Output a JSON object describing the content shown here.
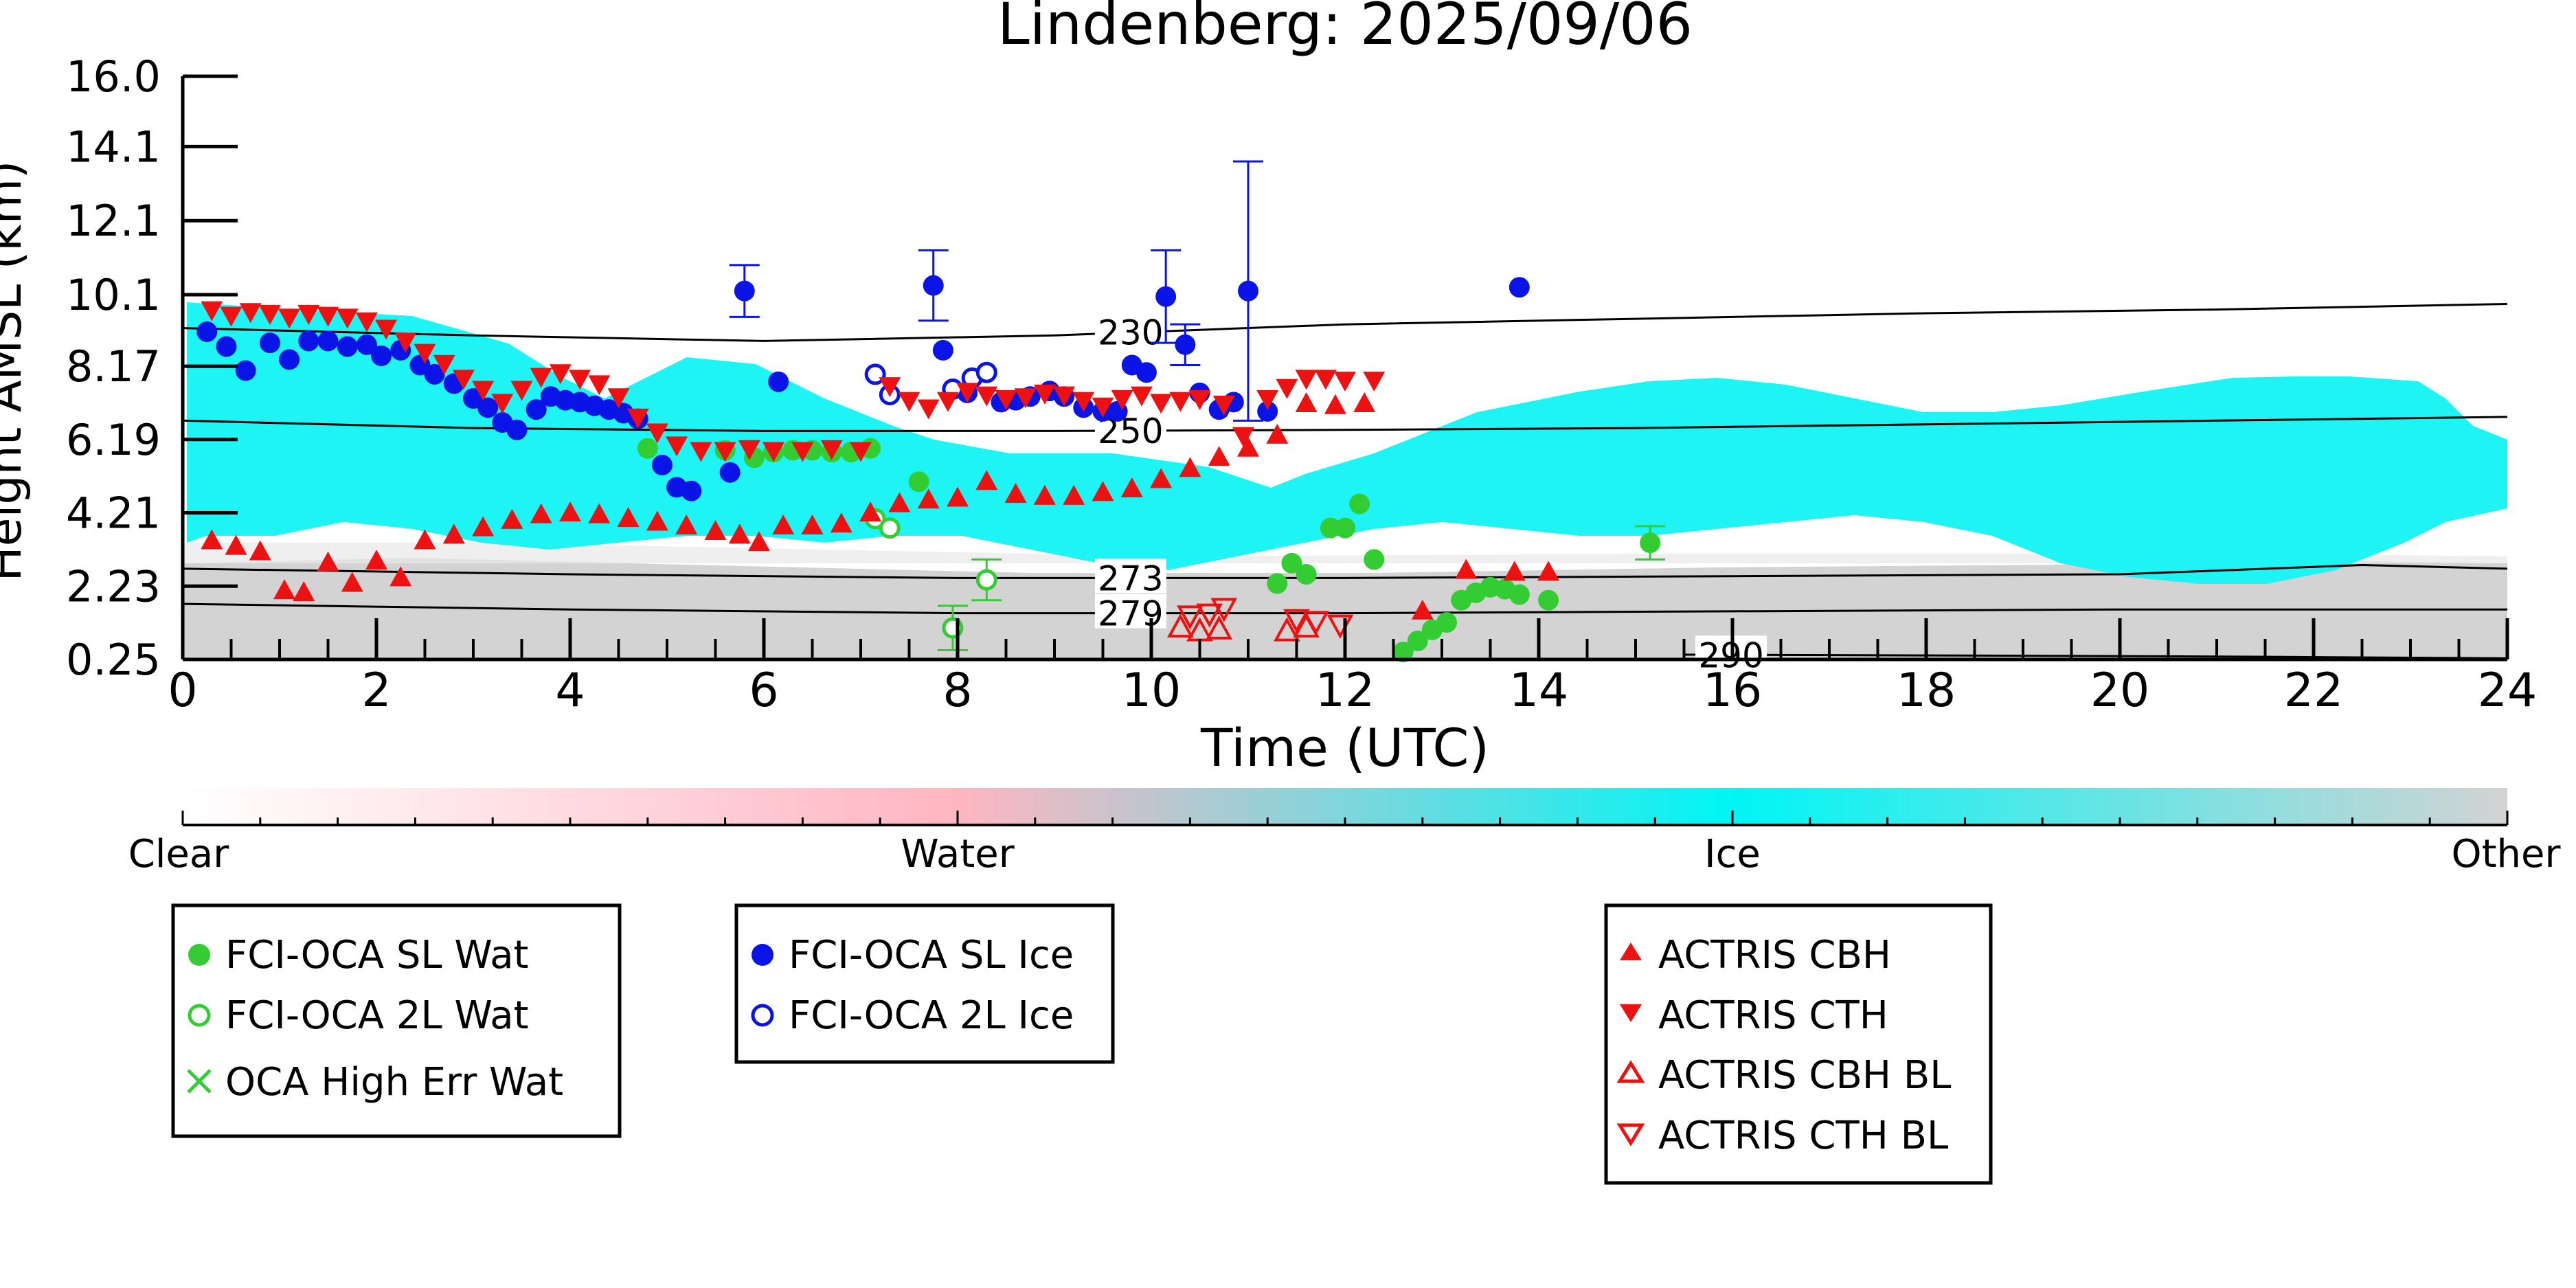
{
  "chart_data": {
    "type": "scatter",
    "title": "Lindenberg: 2025/09/06",
    "xlabel": "Time (UTC)",
    "ylabel": "Height AMSL (km)",
    "xlim": [
      0,
      24
    ],
    "ylim": [
      0.25,
      16.0
    ],
    "x_ticks": [
      0,
      2,
      4,
      6,
      8,
      10,
      12,
      14,
      16,
      18,
      20,
      22,
      24
    ],
    "y_ticks": [
      "0.25",
      "2.23",
      "4.21",
      "6.19",
      "8.17",
      "10.1",
      "12.1",
      "14.1",
      "16.0"
    ],
    "grid": false,
    "colorbar": {
      "labels": [
        "Clear",
        "Water",
        "Ice",
        "Other"
      ],
      "colors": [
        "#ffffff",
        "#ffb6c1",
        "#00ffff",
        "#d3d3d3"
      ]
    },
    "isotherms": [
      {
        "label": "230",
        "label_x": 9.9,
        "points": [
          [
            0,
            9.2
          ],
          [
            3,
            9.0
          ],
          [
            6,
            8.85
          ],
          [
            9,
            9.0
          ],
          [
            12,
            9.3
          ],
          [
            15,
            9.45
          ],
          [
            18,
            9.6
          ],
          [
            21,
            9.7
          ],
          [
            24,
            9.85
          ]
        ]
      },
      {
        "label": "250",
        "label_x": 9.9,
        "points": [
          [
            0,
            6.7
          ],
          [
            3,
            6.5
          ],
          [
            6,
            6.42
          ],
          [
            9,
            6.42
          ],
          [
            12,
            6.45
          ],
          [
            15,
            6.5
          ],
          [
            18,
            6.6
          ],
          [
            21,
            6.7
          ],
          [
            24,
            6.8
          ]
        ]
      },
      {
        "label": "273",
        "label_x": 9.9,
        "points": [
          [
            0,
            2.7
          ],
          [
            4,
            2.55
          ],
          [
            8,
            2.45
          ],
          [
            12,
            2.45
          ],
          [
            16,
            2.5
          ],
          [
            20,
            2.55
          ],
          [
            22.5,
            2.8
          ],
          [
            24,
            2.7
          ]
        ]
      },
      {
        "label": "279",
        "label_x": 9.9,
        "points": [
          [
            0,
            1.75
          ],
          [
            4,
            1.6
          ],
          [
            8,
            1.5
          ],
          [
            12,
            1.5
          ],
          [
            16,
            1.55
          ],
          [
            20,
            1.6
          ],
          [
            24,
            1.6
          ]
        ]
      },
      {
        "label": "290",
        "label_x": 16.1,
        "points": [
          [
            15.5,
            0.38
          ],
          [
            18,
            0.36
          ],
          [
            21,
            0.33
          ],
          [
            24,
            0.28
          ]
        ]
      }
    ],
    "series": [
      {
        "name": "FCI-OCA SL Wat",
        "color": "#33cc33",
        "marker": "filled-circle",
        "points": [
          {
            "x": 4.8,
            "y": 5.95
          },
          {
            "x": 5.6,
            "y": 5.9
          },
          {
            "x": 5.9,
            "y": 5.7
          },
          {
            "x": 6.1,
            "y": 5.85
          },
          {
            "x": 6.3,
            "y": 5.9
          },
          {
            "x": 6.5,
            "y": 5.9
          },
          {
            "x": 6.7,
            "y": 5.85
          },
          {
            "x": 6.9,
            "y": 5.85
          },
          {
            "x": 7.1,
            "y": 5.95
          },
          {
            "x": 7.6,
            "y": 5.05
          },
          {
            "x": 11.3,
            "y": 2.3
          },
          {
            "x": 11.45,
            "y": 2.85
          },
          {
            "x": 11.6,
            "y": 2.55
          },
          {
            "x": 11.85,
            "y": 3.8
          },
          {
            "x": 12.0,
            "y": 3.8
          },
          {
            "x": 12.15,
            "y": 4.45
          },
          {
            "x": 12.3,
            "y": 2.95
          },
          {
            "x": 12.6,
            "y": 0.45
          },
          {
            "x": 12.75,
            "y": 0.75
          },
          {
            "x": 12.9,
            "y": 1.05
          },
          {
            "x": 13.05,
            "y": 1.25
          },
          {
            "x": 13.2,
            "y": 1.85
          },
          {
            "x": 13.35,
            "y": 2.05
          },
          {
            "x": 13.5,
            "y": 2.2
          },
          {
            "x": 13.65,
            "y": 2.15
          },
          {
            "x": 13.8,
            "y": 2.0
          },
          {
            "x": 14.1,
            "y": 1.85
          },
          {
            "x": 15.15,
            "y": 3.4,
            "err": 0.45
          }
        ]
      },
      {
        "name": "FCI-OCA 2L Wat",
        "color": "#33cc33",
        "marker": "open-circle",
        "points": [
          {
            "x": 7.15,
            "y": 4.05
          },
          {
            "x": 7.3,
            "y": 3.8
          },
          {
            "x": 7.95,
            "y": 1.1,
            "err": 0.6
          },
          {
            "x": 8.3,
            "y": 2.4,
            "err": 0.55
          }
        ]
      },
      {
        "name": "OCA High Err Wat",
        "color": "#33cc33",
        "marker": "x",
        "points": []
      },
      {
        "name": "FCI-OCA SL Ice",
        "color": "#0a14e6",
        "marker": "filled-circle",
        "points": [
          {
            "x": 0.25,
            "y": 9.1
          },
          {
            "x": 0.45,
            "y": 8.7
          },
          {
            "x": 0.65,
            "y": 8.05
          },
          {
            "x": 0.9,
            "y": 8.8
          },
          {
            "x": 1.1,
            "y": 8.35
          },
          {
            "x": 1.3,
            "y": 8.85
          },
          {
            "x": 1.5,
            "y": 8.85
          },
          {
            "x": 1.7,
            "y": 8.7
          },
          {
            "x": 1.9,
            "y": 8.75
          },
          {
            "x": 2.05,
            "y": 8.45
          },
          {
            "x": 2.25,
            "y": 8.6
          },
          {
            "x": 2.45,
            "y": 8.2
          },
          {
            "x": 2.6,
            "y": 7.95
          },
          {
            "x": 2.8,
            "y": 7.7
          },
          {
            "x": 3.0,
            "y": 7.3
          },
          {
            "x": 3.15,
            "y": 7.05
          },
          {
            "x": 3.3,
            "y": 6.65
          },
          {
            "x": 3.45,
            "y": 6.45
          },
          {
            "x": 3.65,
            "y": 7.0
          },
          {
            "x": 3.8,
            "y": 7.35
          },
          {
            "x": 3.95,
            "y": 7.25
          },
          {
            "x": 4.1,
            "y": 7.2
          },
          {
            "x": 4.25,
            "y": 7.1
          },
          {
            "x": 4.4,
            "y": 7.0
          },
          {
            "x": 4.55,
            "y": 6.9
          },
          {
            "x": 4.7,
            "y": 6.75
          },
          {
            "x": 4.95,
            "y": 5.5
          },
          {
            "x": 5.1,
            "y": 4.9
          },
          {
            "x": 5.25,
            "y": 4.8
          },
          {
            "x": 5.8,
            "y": 10.2,
            "err": 0.7
          },
          {
            "x": 5.65,
            "y": 5.3
          },
          {
            "x": 6.15,
            "y": 7.75
          },
          {
            "x": 7.75,
            "y": 10.35,
            "err": 0.95
          },
          {
            "x": 7.85,
            "y": 8.6
          },
          {
            "x": 8.1,
            "y": 7.45
          },
          {
            "x": 8.45,
            "y": 7.2
          },
          {
            "x": 8.6,
            "y": 7.25
          },
          {
            "x": 8.75,
            "y": 7.35
          },
          {
            "x": 8.95,
            "y": 7.5
          },
          {
            "x": 9.1,
            "y": 7.35
          },
          {
            "x": 9.3,
            "y": 7.05
          },
          {
            "x": 9.5,
            "y": 6.95
          },
          {
            "x": 9.65,
            "y": 6.95
          },
          {
            "x": 9.8,
            "y": 8.2
          },
          {
            "x": 9.95,
            "y": 8.0
          },
          {
            "x": 10.15,
            "y": 10.05,
            "err": 1.25
          },
          {
            "x": 10.35,
            "y": 8.75,
            "err": 0.55
          },
          {
            "x": 10.5,
            "y": 7.45
          },
          {
            "x": 10.7,
            "y": 7.0
          },
          {
            "x": 10.85,
            "y": 7.2
          },
          {
            "x": 11.0,
            "y": 10.2,
            "err": 3.5
          },
          {
            "x": 11.2,
            "y": 6.95
          },
          {
            "x": 13.8,
            "y": 10.3
          }
        ]
      },
      {
        "name": "FCI-OCA 2L Ice",
        "color": "#0a14e6",
        "marker": "open-circle",
        "points": [
          {
            "x": 7.15,
            "y": 7.95
          },
          {
            "x": 7.3,
            "y": 7.4
          },
          {
            "x": 7.95,
            "y": 7.55
          },
          {
            "x": 8.15,
            "y": 7.85
          },
          {
            "x": 8.3,
            "y": 8.0
          }
        ]
      },
      {
        "name": "ACTRIS CBH",
        "color": "#ee1111",
        "marker": "triangle-up",
        "points": [
          {
            "x": 0.3,
            "y": 3.45
          },
          {
            "x": 0.55,
            "y": 3.3
          },
          {
            "x": 0.8,
            "y": 3.15
          },
          {
            "x": 1.05,
            "y": 2.1
          },
          {
            "x": 1.25,
            "y": 2.05
          },
          {
            "x": 1.5,
            "y": 2.85
          },
          {
            "x": 1.75,
            "y": 2.3
          },
          {
            "x": 2.0,
            "y": 2.9
          },
          {
            "x": 2.25,
            "y": 2.45
          },
          {
            "x": 2.5,
            "y": 3.45
          },
          {
            "x": 2.8,
            "y": 3.6
          },
          {
            "x": 3.1,
            "y": 3.8
          },
          {
            "x": 3.4,
            "y": 4.0
          },
          {
            "x": 3.7,
            "y": 4.15
          },
          {
            "x": 4.0,
            "y": 4.2
          },
          {
            "x": 4.3,
            "y": 4.15
          },
          {
            "x": 4.6,
            "y": 4.05
          },
          {
            "x": 4.9,
            "y": 3.95
          },
          {
            "x": 5.2,
            "y": 3.85
          },
          {
            "x": 5.5,
            "y": 3.7
          },
          {
            "x": 5.75,
            "y": 3.6
          },
          {
            "x": 5.95,
            "y": 3.4
          },
          {
            "x": 6.2,
            "y": 3.85
          },
          {
            "x": 6.5,
            "y": 3.85
          },
          {
            "x": 6.8,
            "y": 3.9
          },
          {
            "x": 7.1,
            "y": 4.2
          },
          {
            "x": 7.4,
            "y": 4.45
          },
          {
            "x": 7.7,
            "y": 4.55
          },
          {
            "x": 8.0,
            "y": 4.6
          },
          {
            "x": 8.3,
            "y": 5.05
          },
          {
            "x": 8.6,
            "y": 4.7
          },
          {
            "x": 8.9,
            "y": 4.65
          },
          {
            "x": 9.2,
            "y": 4.65
          },
          {
            "x": 9.5,
            "y": 4.75
          },
          {
            "x": 9.8,
            "y": 4.85
          },
          {
            "x": 10.1,
            "y": 5.1
          },
          {
            "x": 10.4,
            "y": 5.4
          },
          {
            "x": 10.7,
            "y": 5.7
          },
          {
            "x": 11.0,
            "y": 5.95
          },
          {
            "x": 11.3,
            "y": 6.3
          },
          {
            "x": 11.6,
            "y": 7.15
          },
          {
            "x": 11.9,
            "y": 7.1
          },
          {
            "x": 12.2,
            "y": 7.15
          },
          {
            "x": 12.8,
            "y": 1.55
          },
          {
            "x": 13.25,
            "y": 2.65
          },
          {
            "x": 13.75,
            "y": 2.6
          },
          {
            "x": 14.1,
            "y": 2.6
          }
        ]
      },
      {
        "name": "ACTRIS CTH",
        "color": "#ee1111",
        "marker": "triangle-down",
        "points": [
          {
            "x": 0.3,
            "y": 9.7
          },
          {
            "x": 0.5,
            "y": 9.55
          },
          {
            "x": 0.7,
            "y": 9.65
          },
          {
            "x": 0.9,
            "y": 9.6
          },
          {
            "x": 1.1,
            "y": 9.5
          },
          {
            "x": 1.3,
            "y": 9.6
          },
          {
            "x": 1.5,
            "y": 9.55
          },
          {
            "x": 1.7,
            "y": 9.5
          },
          {
            "x": 1.9,
            "y": 9.4
          },
          {
            "x": 2.1,
            "y": 9.2
          },
          {
            "x": 2.3,
            "y": 8.85
          },
          {
            "x": 2.5,
            "y": 8.55
          },
          {
            "x": 2.7,
            "y": 8.25
          },
          {
            "x": 2.9,
            "y": 7.85
          },
          {
            "x": 3.1,
            "y": 7.55
          },
          {
            "x": 3.3,
            "y": 7.2
          },
          {
            "x": 3.5,
            "y": 7.55
          },
          {
            "x": 3.7,
            "y": 7.9
          },
          {
            "x": 3.9,
            "y": 8.0
          },
          {
            "x": 4.1,
            "y": 7.85
          },
          {
            "x": 4.3,
            "y": 7.7
          },
          {
            "x": 4.5,
            "y": 7.35
          },
          {
            "x": 4.7,
            "y": 6.8
          },
          {
            "x": 4.9,
            "y": 6.4
          },
          {
            "x": 5.1,
            "y": 6.05
          },
          {
            "x": 5.35,
            "y": 5.9
          },
          {
            "x": 5.6,
            "y": 5.9
          },
          {
            "x": 5.85,
            "y": 5.95
          },
          {
            "x": 6.1,
            "y": 5.9
          },
          {
            "x": 6.4,
            "y": 5.9
          },
          {
            "x": 6.7,
            "y": 5.95
          },
          {
            "x": 7.0,
            "y": 5.9
          },
          {
            "x": 7.3,
            "y": 7.65
          },
          {
            "x": 7.5,
            "y": 7.25
          },
          {
            "x": 7.7,
            "y": 7.05
          },
          {
            "x": 7.9,
            "y": 7.25
          },
          {
            "x": 8.1,
            "y": 7.5
          },
          {
            "x": 8.3,
            "y": 7.4
          },
          {
            "x": 8.5,
            "y": 7.3
          },
          {
            "x": 8.7,
            "y": 7.35
          },
          {
            "x": 8.9,
            "y": 7.45
          },
          {
            "x": 9.1,
            "y": 7.4
          },
          {
            "x": 9.3,
            "y": 7.25
          },
          {
            "x": 9.5,
            "y": 7.1
          },
          {
            "x": 9.7,
            "y": 7.3
          },
          {
            "x": 9.9,
            "y": 7.4
          },
          {
            "x": 10.1,
            "y": 7.2
          },
          {
            "x": 10.3,
            "y": 7.25
          },
          {
            "x": 10.5,
            "y": 7.3
          },
          {
            "x": 10.75,
            "y": 7.15
          },
          {
            "x": 10.95,
            "y": 6.3
          },
          {
            "x": 11.2,
            "y": 7.3
          },
          {
            "x": 11.4,
            "y": 7.6
          },
          {
            "x": 11.6,
            "y": 7.85
          },
          {
            "x": 11.8,
            "y": 7.85
          },
          {
            "x": 12.0,
            "y": 7.8
          },
          {
            "x": 12.3,
            "y": 7.8
          }
        ]
      },
      {
        "name": "ACTRIS CBH BL",
        "color": "#ee1111",
        "marker": "open-triangle-up",
        "points": [
          {
            "x": 10.3,
            "y": 1.1
          },
          {
            "x": 10.5,
            "y": 1.0
          },
          {
            "x": 10.7,
            "y": 1.05
          },
          {
            "x": 11.4,
            "y": 1.0
          },
          {
            "x": 11.6,
            "y": 1.1
          }
        ]
      },
      {
        "name": "ACTRIS CTH BL",
        "color": "#ee1111",
        "marker": "open-triangle-down",
        "points": [
          {
            "x": 10.4,
            "y": 1.45
          },
          {
            "x": 10.6,
            "y": 1.5
          },
          {
            "x": 10.75,
            "y": 1.65
          },
          {
            "x": 11.5,
            "y": 1.35
          },
          {
            "x": 11.7,
            "y": 1.3
          },
          {
            "x": 11.95,
            "y": 1.2
          }
        ]
      }
    ],
    "legend": [
      {
        "box": "water",
        "entries": [
          "FCI-OCA SL Wat",
          "FCI-OCA 2L Wat",
          "OCA High Err Wat"
        ]
      },
      {
        "box": "ice",
        "entries": [
          "FCI-OCA SL Ice",
          "FCI-OCA 2L Ice"
        ]
      },
      {
        "box": "actris",
        "entries": [
          "ACTRIS CBH",
          "ACTRIS CTH",
          "ACTRIS CBH BL",
          "ACTRIS CTH BL"
        ]
      }
    ]
  }
}
